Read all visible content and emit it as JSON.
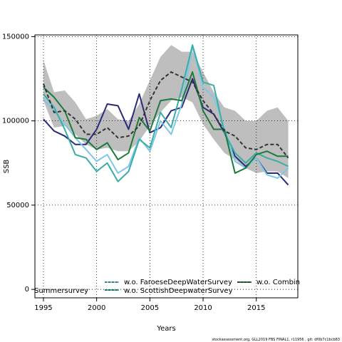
{
  "chart_data": {
    "type": "line",
    "title": "",
    "xlabel": "Years",
    "ylabel": "SSB",
    "xlim": [
      1994.2,
      2018.9
    ],
    "ylim": [
      -5000,
      151000
    ],
    "x_ticks": [
      1995,
      2000,
      2005,
      2010,
      2015
    ],
    "y_ticks": [
      0,
      50000,
      100000,
      150000
    ],
    "y_tick_labels": [
      "0",
      "50000",
      "100000",
      "150000"
    ],
    "grid": "dotted",
    "legend_position": "bottom",
    "x": [
      1995,
      1996,
      1997,
      1998,
      1999,
      2000,
      2001,
      2002,
      2003,
      2004,
      2005,
      2006,
      2007,
      2008,
      2009,
      2010,
      2011,
      2012,
      2013,
      2014,
      2015,
      2016,
      2017,
      2018
    ],
    "band": {
      "upper": [
        136000,
        117000,
        118000,
        111000,
        101000,
        103000,
        107000,
        101000,
        100000,
        110000,
        124000,
        138000,
        145000,
        141000,
        141000,
        129000,
        117000,
        108000,
        106000,
        100000,
        100000,
        106000,
        108000,
        100000
      ],
      "lower": [
        112000,
        96000,
        97000,
        92000,
        86000,
        83000,
        84000,
        82000,
        82000,
        88000,
        97000,
        105000,
        112000,
        114000,
        111000,
        98000,
        89000,
        81000,
        77000,
        72000,
        69000,
        70000,
        70000,
        66000
      ],
      "color": "#bebebe"
    },
    "series": [
      {
        "name": "",
        "color": "#2b2b7c",
        "style": "solid",
        "values": [
          101000,
          94000,
          91000,
          86000,
          86000,
          95000,
          110000,
          109000,
          95000,
          116000,
          93000,
          96000,
          106000,
          108000,
          125000,
          108000,
          104000,
          93000,
          79000,
          73000,
          78000,
          69000,
          69000,
          62000
        ]
      },
      {
        "name": "w.o. FaroeseDeepWaterSurvey",
        "color": "#7ec7e8",
        "style": "solid",
        "values": [
          113000,
          106000,
          98000,
          90000,
          83000,
          76000,
          80000,
          69000,
          73000,
          90000,
          82000,
          100000,
          92000,
          110000,
          144000,
          120000,
          114000,
          96000,
          76000,
          72000,
          78000,
          68000,
          66000,
          72000
        ]
      },
      {
        "name": "w.o. ScottishDeepwaterSurvey",
        "color": "#3aaea4",
        "style": "solid",
        "values": [
          116000,
          108000,
          95000,
          80000,
          78000,
          70000,
          75000,
          64000,
          70000,
          89000,
          84000,
          105000,
          96000,
          119000,
          145000,
          123000,
          121000,
          93000,
          81000,
          75000,
          81000,
          78000,
          76000,
          73000
        ]
      },
      {
        "name": "w.o. Combin",
        "color": "#1e7a3c",
        "style": "solid",
        "values": [
          120000,
          114000,
          106000,
          90000,
          89000,
          83000,
          87000,
          77000,
          81000,
          102000,
          94000,
          112000,
          113000,
          112000,
          129000,
          106000,
          95000,
          95000,
          69000,
          72000,
          80000,
          82000,
          79000,
          79000
        ]
      },
      {
        "name": "",
        "color": "#333333",
        "style": "dashed",
        "values": [
          122000,
          105000,
          106000,
          101000,
          92000,
          92000,
          96000,
          90000,
          91000,
          97000,
          112000,
          124000,
          129000,
          126000,
          123000,
          112000,
          104000,
          94000,
          91000,
          84000,
          83000,
          86000,
          86000,
          78000
        ]
      }
    ],
    "legend": {
      "entries": [
        {
          "label": "w.o. FaroeseDeepWaterSurvey",
          "color": "#7ec7e8"
        },
        {
          "label": "w.o. ScottishDeepwaterSurvey",
          "color": "#3aaea4"
        },
        {
          "label": "w.o. Combin",
          "color": "#1e7a3c"
        },
        {
          "label": "Summersurvey",
          "color": "#2b2b7c"
        }
      ]
    }
  },
  "footer": "stockassessment.org, GLL2019 FBS FINAL1, r11956 , git: df0b7c1bcb83"
}
